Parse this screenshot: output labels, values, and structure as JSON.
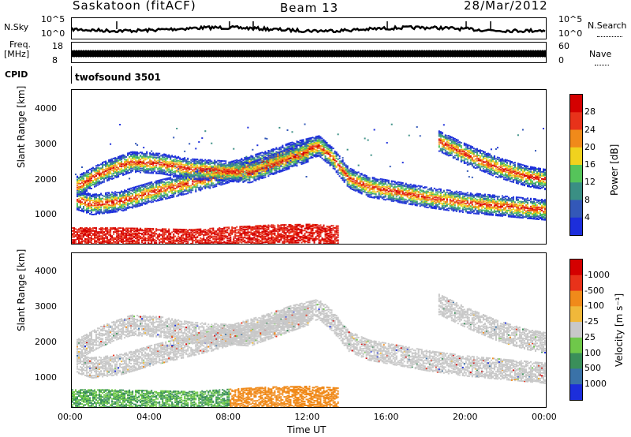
{
  "header": {
    "station": "Saskatoon (fitACF)",
    "beam": "Beam 13",
    "date": "28/Mar/2012"
  },
  "noise": {
    "left_label": "N.Sky",
    "right_label": "N.Search",
    "left_ticks": [
      "10^5",
      "10^0"
    ],
    "right_ticks": [
      "10^5",
      "10^0"
    ]
  },
  "freq": {
    "left_label_1": "Freq.",
    "left_label_2": "[MHz]",
    "right_label": "Nave",
    "left_ticks": [
      "18",
      "8"
    ],
    "right_ticks": [
      "60",
      "0"
    ]
  },
  "cpid": {
    "label": "CPID",
    "program": "twofsound 3501"
  },
  "chart_data": [
    {
      "type": "heatmap",
      "panel": "power",
      "ylabel": "Slant Range [km]",
      "y_ticks": [
        "1000",
        "2000",
        "3000",
        "4000"
      ],
      "ylim": [
        180,
        4500
      ],
      "xlim_hours": [
        0,
        24
      ],
      "colorbar": {
        "label": "Power [dB]",
        "tick_labels": [
          "4",
          "8",
          "12",
          "16",
          "20",
          "24",
          "28"
        ],
        "colors": [
          "#1c2edb",
          "#3358b8",
          "#3a8f84",
          "#55c45a",
          "#f0d21e",
          "#f08a1a",
          "#e8321a",
          "#d40000"
        ]
      },
      "bands": [
        {
          "name": "ionospheric",
          "points": [
            [
              0.2,
              1450
            ],
            [
              1,
              1300
            ],
            [
              2.5,
              1400
            ],
            [
              4,
              1650
            ],
            [
              5.5,
              1850
            ],
            [
              7,
              2050
            ],
            [
              8.5,
              2300
            ],
            [
              10,
              2550
            ],
            [
              11,
              2750
            ],
            [
              12.5,
              2950
            ],
            [
              13.2,
              2600
            ],
            [
              14,
              2050
            ],
            [
              15,
              1800
            ],
            [
              16.5,
              1650
            ],
            [
              18,
              1500
            ],
            [
              20,
              1350
            ],
            [
              22,
              1250
            ],
            [
              24,
              1150
            ]
          ]
        },
        {
          "name": "ionospheric-upper",
          "points": [
            [
              0.2,
              1800
            ],
            [
              1.5,
              2200
            ],
            [
              3,
              2500
            ],
            [
              4.5,
              2450
            ],
            [
              6,
              2300
            ],
            [
              7.5,
              2250
            ],
            [
              9,
              2200
            ],
            [
              10.5,
              2500
            ],
            [
              12,
              2800
            ]
          ]
        },
        {
          "name": "groundscatter",
          "points": [
            [
              0,
              400
            ],
            [
              2,
              400
            ],
            [
              4,
              380
            ],
            [
              6,
              350
            ],
            [
              8,
              420
            ],
            [
              10,
              480
            ],
            [
              12,
              500
            ],
            [
              13.5,
              450
            ]
          ]
        },
        {
          "name": "late-upper",
          "points": [
            [
              18.5,
              3100
            ],
            [
              20,
              2700
            ],
            [
              21.5,
              2350
            ],
            [
              23,
              2100
            ],
            [
              24,
              2000
            ]
          ]
        }
      ]
    },
    {
      "type": "heatmap",
      "panel": "velocity",
      "ylabel": "Slant Range [km]",
      "y_ticks": [
        "1000",
        "2000",
        "3000",
        "4000"
      ],
      "ylim": [
        180,
        4500
      ],
      "xlim_hours": [
        0,
        24
      ],
      "colorbar": {
        "label": "Velocity [m s⁻¹]",
        "tick_labels": [
          "1000",
          "500",
          "100",
          "25",
          "-25",
          "-100",
          "-500",
          "-1000"
        ],
        "colors": [
          "#1c2edb",
          "#3a72a8",
          "#3a8f5a",
          "#6fc84a",
          "#c8c8c8",
          "#f0b83a",
          "#f08a1a",
          "#e8321a",
          "#d40000"
        ]
      }
    }
  ],
  "x_axis": {
    "label": "Time UT",
    "ticks": [
      "00:00",
      "04:00",
      "08:00",
      "12:00",
      "16:00",
      "20:00",
      "00:00"
    ]
  }
}
